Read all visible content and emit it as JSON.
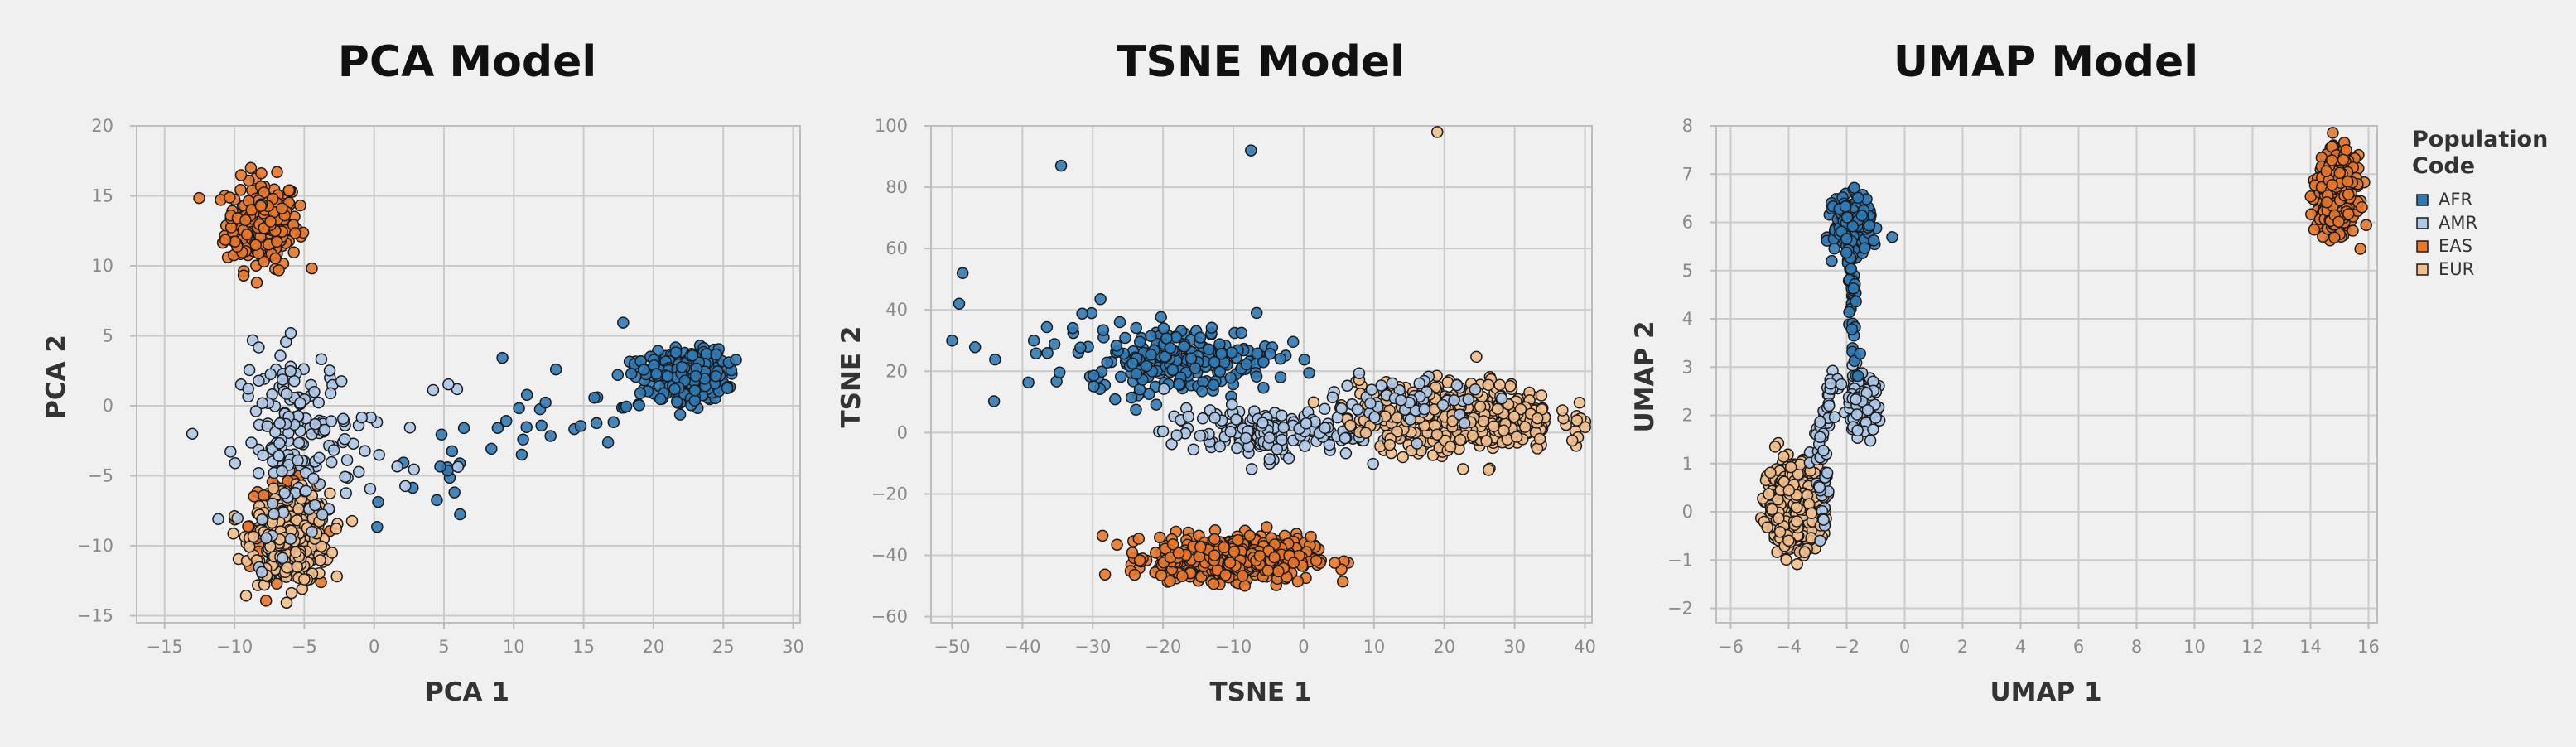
{
  "chart_data": [
    {
      "type": "scatter",
      "title": "PCA Model",
      "xlabel": "PCA 1",
      "ylabel": "PCA 2",
      "xlim": [
        -17,
        30.5
      ],
      "ylim": [
        -15.5,
        20
      ],
      "xticks": [
        -15,
        -10,
        -5,
        0,
        5,
        10,
        15,
        20,
        25,
        30
      ],
      "yticks": [
        -15,
        -10,
        -5,
        0,
        5,
        10,
        15,
        20
      ],
      "xtick_labels": [
        "−15",
        "−10",
        "−5",
        "0",
        "5",
        "10",
        "15",
        "20",
        "25",
        "30"
      ],
      "ytick_labels": [
        "−15",
        "−10",
        "−5",
        "0",
        "5",
        "10",
        "15",
        "20"
      ],
      "grid": true,
      "clusters": [
        {
          "series": "EAS",
          "cx": -8,
          "cy": 13,
          "sx": 1.3,
          "sy": 1.6,
          "n": 220
        },
        {
          "series": "EAS",
          "cx": -6.5,
          "cy": -8.5,
          "sx": 1.2,
          "sy": 1.6,
          "n": 140
        },
        {
          "series": "EUR",
          "cx": -6,
          "cy": -9.5,
          "sx": 1.4,
          "sy": 1.6,
          "n": 330
        },
        {
          "series": "AFR",
          "cx": 22.5,
          "cy": 2.2,
          "sx": 1.3,
          "sy": 0.9,
          "n": 320
        },
        {
          "series": "AMR",
          "cx": -5.5,
          "cy": -2.5,
          "sx": 2.0,
          "sy": 3.2,
          "n": 150
        }
      ],
      "lines": [
        {
          "series": "AFR",
          "from": [
            0,
            -6
          ],
          "to": [
            20,
            2
          ],
          "n": 55,
          "spread": 1.6
        },
        {
          "series": "AMR",
          "from": [
            -7,
            -3
          ],
          "to": [
            5,
            0
          ],
          "n": 25,
          "spread": 2.0
        }
      ]
    },
    {
      "type": "scatter",
      "title": "TSNE Model",
      "xlabel": "TSNE 1",
      "ylabel": "TSNE 2",
      "xlim": [
        -53,
        41
      ],
      "ylim": [
        -62,
        100
      ],
      "xticks": [
        -50,
        -40,
        -30,
        -20,
        -10,
        0,
        10,
        20,
        30,
        40
      ],
      "yticks": [
        -60,
        -40,
        -20,
        0,
        20,
        40,
        60,
        80,
        100
      ],
      "xtick_labels": [
        "−50",
        "−40",
        "−30",
        "−20",
        "−10",
        "0",
        "10",
        "20",
        "30",
        "40"
      ],
      "ytick_labels": [
        "−60",
        "−40",
        "−20",
        "0",
        "20",
        "40",
        "60",
        "80",
        "100"
      ],
      "grid": true,
      "clusters": [
        {
          "series": "EAS",
          "cx": -10,
          "cy": -41,
          "sx": 5.5,
          "sy": 3.5,
          "n": 560
        },
        {
          "series": "AFR",
          "cx": -17,
          "cy": 24,
          "sx": 6.5,
          "sy": 5.5,
          "n": 210
        },
        {
          "series": "AFR",
          "cx": -32,
          "cy": 25,
          "sx": 6,
          "sy": 9,
          "n": 25
        },
        {
          "series": "AMR",
          "cx": -6,
          "cy": 0,
          "sx": 7,
          "sy": 4,
          "n": 150
        },
        {
          "series": "EUR",
          "cx": 22,
          "cy": 5,
          "sx": 7,
          "sy": 5.5,
          "n": 520
        },
        {
          "series": "AMR",
          "cx": 14,
          "cy": 10,
          "sx": 6,
          "sy": 5,
          "n": 60
        }
      ],
      "points": [
        {
          "series": "AFR",
          "x": -34.5,
          "y": 87
        },
        {
          "series": "AFR",
          "x": -7.5,
          "y": 92
        },
        {
          "series": "EUR",
          "x": 19,
          "y": 98
        },
        {
          "series": "AFR",
          "x": -48.5,
          "y": 52
        },
        {
          "series": "AFR",
          "x": -49,
          "y": 42
        },
        {
          "series": "AFR",
          "x": -50,
          "y": 30
        }
      ]
    },
    {
      "type": "scatter",
      "title": "UMAP Model",
      "xlabel": "UMAP 1",
      "ylabel": "UMAP 2",
      "xlim": [
        -6.5,
        16.3
      ],
      "ylim": [
        -2.3,
        8
      ],
      "xticks": [
        -6,
        -4,
        -2,
        0,
        2,
        4,
        6,
        8,
        10,
        12,
        14,
        16
      ],
      "yticks": [
        -2,
        -1,
        0,
        1,
        2,
        3,
        4,
        5,
        6,
        7,
        8
      ],
      "xtick_labels": [
        "−6",
        "−4",
        "−2",
        "0",
        "2",
        "4",
        "6",
        "8",
        "10",
        "12",
        "14",
        "16"
      ],
      "ytick_labels": [
        "−2",
        "−1",
        "0",
        "1",
        "2",
        "3",
        "4",
        "5",
        "6",
        "7",
        "8"
      ],
      "grid": true,
      "clusters": [
        {
          "series": "EAS",
          "cx": 14.9,
          "cy": 6.6,
          "sx": 0.32,
          "sy": 0.38,
          "n": 500
        },
        {
          "series": "AFR",
          "cx": -1.8,
          "cy": 5.95,
          "sx": 0.32,
          "sy": 0.28,
          "n": 230
        },
        {
          "series": "EUR",
          "cx": -3.8,
          "cy": 0.15,
          "sx": 0.45,
          "sy": 0.42,
          "n": 620
        },
        {
          "series": "AMR",
          "cx": -1.5,
          "cy": 2.25,
          "sx": 0.3,
          "sy": 0.3,
          "n": 90
        }
      ],
      "lines": [
        {
          "series": "AFR",
          "from": [
            -1.95,
            5.6
          ],
          "to": [
            -1.75,
            4.2
          ],
          "n": 35,
          "spread": 0.1
        },
        {
          "series": "AFR",
          "from": [
            -1.8,
            4.2
          ],
          "to": [
            -1.6,
            2.7
          ],
          "n": 15,
          "spread": 0.15
        },
        {
          "series": "AMR",
          "from": [
            -2.3,
            2.8
          ],
          "to": [
            -3.2,
            1.0
          ],
          "n": 40,
          "spread": 0.2
        },
        {
          "series": "AMR",
          "from": [
            -2.8,
            1.5
          ],
          "to": [
            -2.8,
            -0.5
          ],
          "n": 25,
          "spread": 0.2
        }
      ]
    }
  ],
  "legend": {
    "title_lines": [
      "Population",
      "Code"
    ],
    "placement": "right",
    "items": [
      {
        "label": "AFR",
        "color": "#2f7ab5"
      },
      {
        "label": "AMR",
        "color": "#aec8e8"
      },
      {
        "label": "EAS",
        "color": "#e8782a"
      },
      {
        "label": "EUR",
        "color": "#f2bf8c"
      }
    ]
  },
  "colors": {
    "AFR": "#2f7ab5",
    "AMR": "#aec8e8",
    "EAS": "#e8782a",
    "EUR": "#f2bf8c",
    "background": "#f0f0f0",
    "grid": "#cbcbcb",
    "axis": "#bdbdbd",
    "marker_edge": "#1a1a1a"
  }
}
